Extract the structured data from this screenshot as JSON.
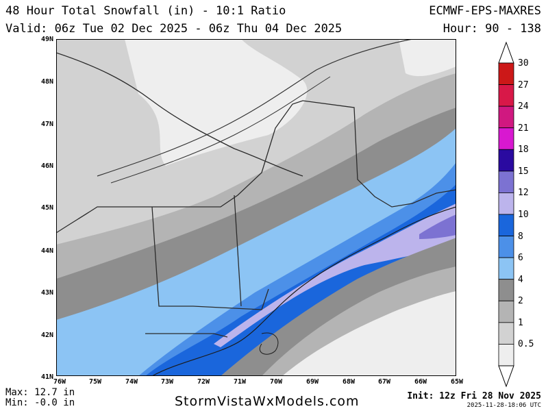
{
  "header": {
    "title": "48 Hour Total Snowfall (in) - 10:1 Ratio",
    "model": "ECMWF-EPS-MAXRES",
    "valid": "Valid: 06z Tue 02 Dec 2025 - 06z Thu 04 Dec 2025",
    "hour": "Hour: 90 - 138"
  },
  "axes": {
    "lat_labels": [
      "49N",
      "48N",
      "47N",
      "46N",
      "45N",
      "44N",
      "43N",
      "42N",
      "41N"
    ],
    "lon_labels": [
      "76W",
      "75W",
      "74W",
      "73W",
      "72W",
      "71W",
      "70W",
      "69W",
      "68W",
      "67W",
      "66W",
      "65W"
    ]
  },
  "legend": {
    "levels": [
      {
        "label": "30",
        "color": "#cc1818"
      },
      {
        "label": "27",
        "color": "#d81848"
      },
      {
        "label": "24",
        "color": "#d01880"
      },
      {
        "label": "21",
        "color": "#d818d0"
      },
      {
        "label": "18",
        "color": "#2a0aa0"
      },
      {
        "label": "15",
        "color": "#7c72d2"
      },
      {
        "label": "12",
        "color": "#bcb4ec"
      },
      {
        "label": "10",
        "color": "#1a66dc"
      },
      {
        "label": "8",
        "color": "#4c90e8"
      },
      {
        "label": "6",
        "color": "#8cc4f4"
      },
      {
        "label": "4",
        "color": "#8e8e8e"
      },
      {
        "label": "2",
        "color": "#b4b4b4"
      },
      {
        "label": "1",
        "color": "#d2d2d2"
      },
      {
        "label": "0.5",
        "color": "#eeeeee"
      }
    ]
  },
  "stats": {
    "max": "Max: 12.7 in",
    "min": "Min: -0.0 in"
  },
  "footer": {
    "site": "StormVistaWxModels.com",
    "init": "Init: 12z Fri 28 Nov 2025",
    "stamp": "2025-11-28-18:06 UTC"
  }
}
